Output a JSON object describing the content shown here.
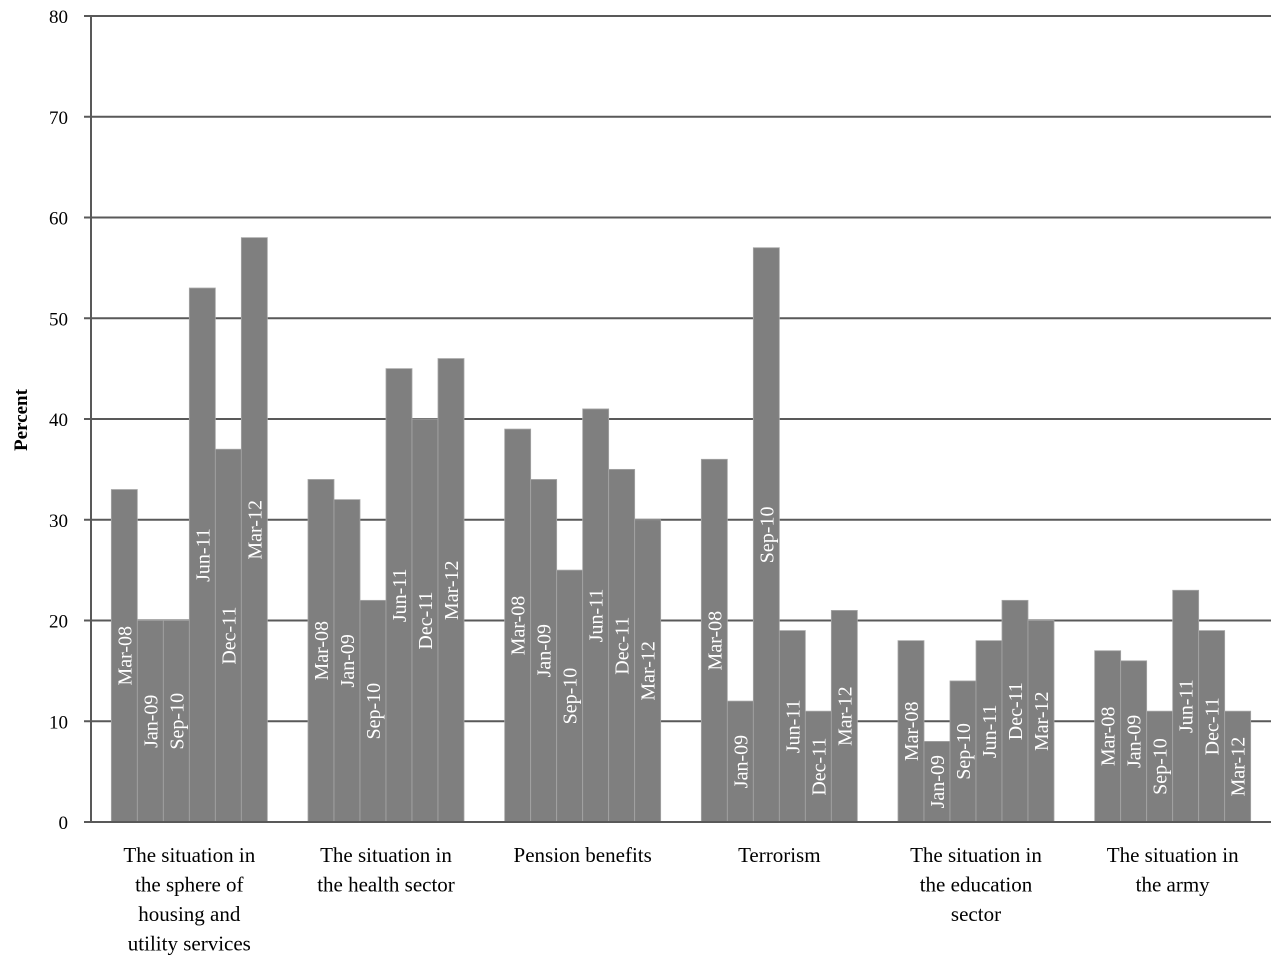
{
  "chart_data": {
    "type": "bar",
    "ylabel": "Percent",
    "ylim": [
      0,
      80
    ],
    "yticks": [
      0,
      10,
      20,
      30,
      40,
      50,
      60,
      70,
      80
    ],
    "grid": true,
    "bar_color": "#7f7f7f",
    "bar_label_color": "#ffffff",
    "series_names": [
      "Mar-08",
      "Jan-09",
      "Sep-10",
      "Jun-11",
      "Dec-11",
      "Mar-12"
    ],
    "groups": [
      {
        "label": "The situation in the sphere of housing and utility services",
        "values": [
          33,
          20,
          20,
          53,
          37,
          58
        ]
      },
      {
        "label": "The situation in the health sector",
        "values": [
          34,
          32,
          22,
          45,
          40,
          46
        ]
      },
      {
        "label": "Pension benefits",
        "values": [
          39,
          34,
          25,
          41,
          35,
          30
        ]
      },
      {
        "label": "Terrorism",
        "values": [
          36,
          12,
          57,
          19,
          11,
          21
        ]
      },
      {
        "label": "The situation in the education sector",
        "values": [
          18,
          8,
          14,
          18,
          22,
          20
        ]
      },
      {
        "label": "The situation in the army",
        "values": [
          17,
          16,
          11,
          23,
          19,
          11
        ]
      }
    ]
  }
}
